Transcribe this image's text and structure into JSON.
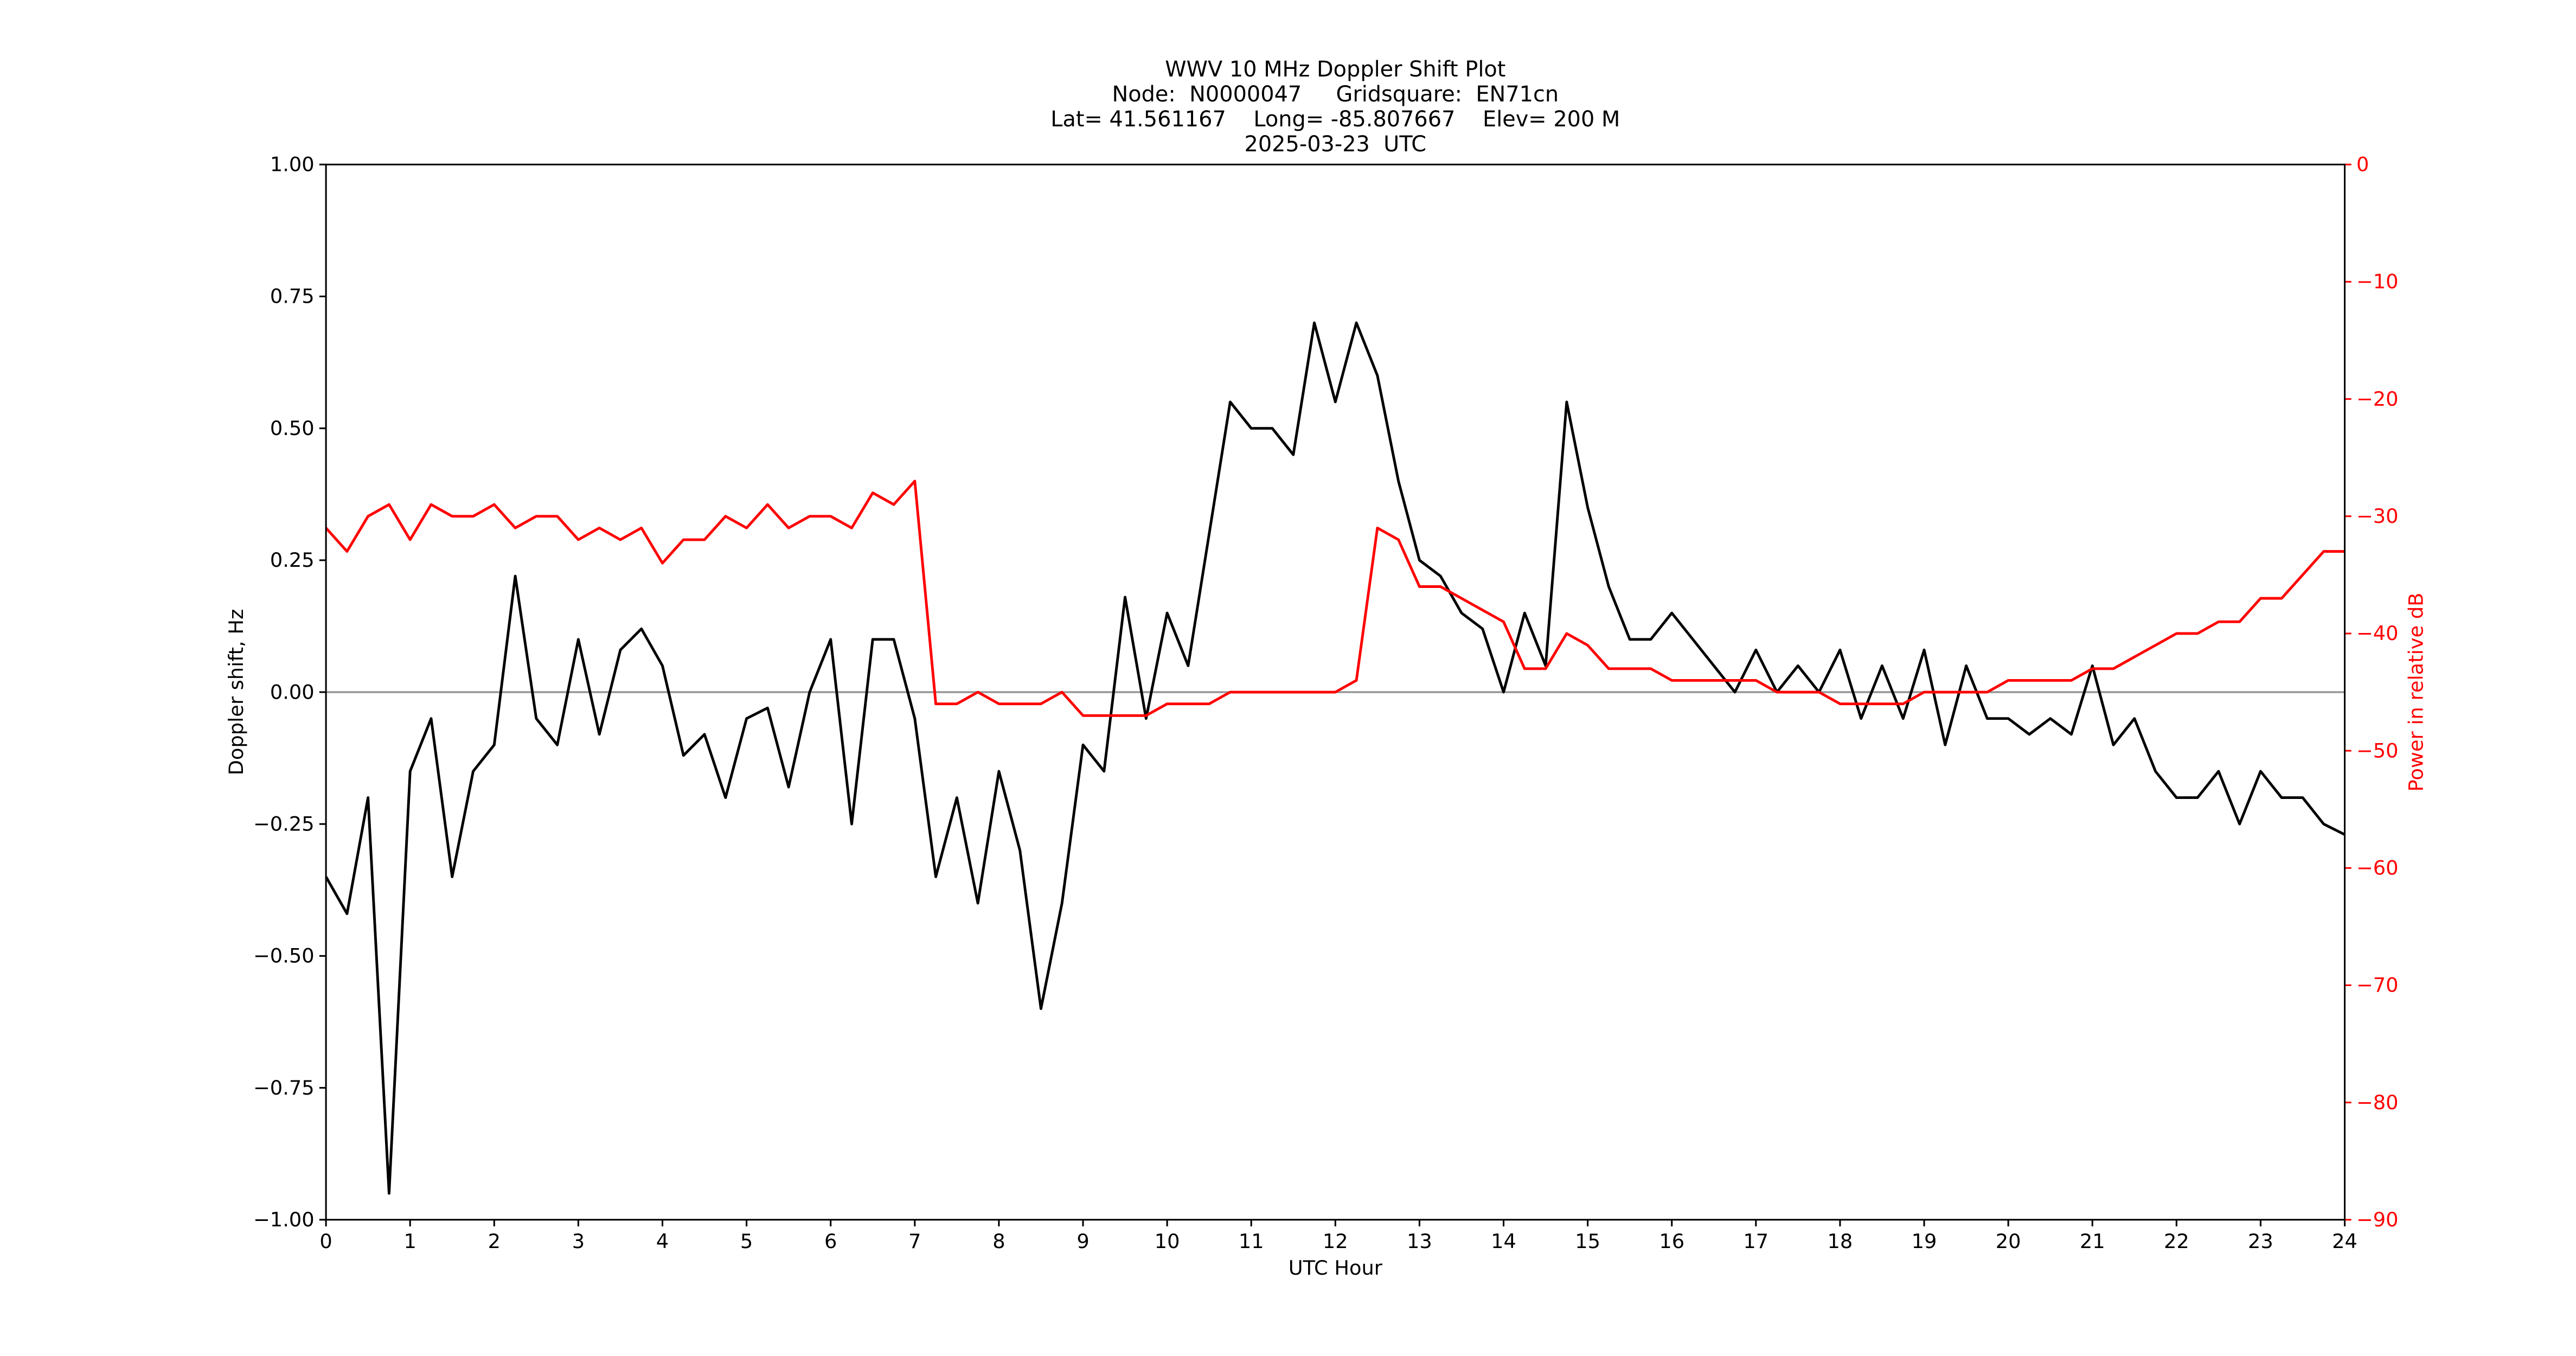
{
  "chart_data": {
    "type": "line",
    "title_lines": [
      "WWV 10 MHz Doppler Shift Plot",
      "Node:  N0000047     Gridsquare:  EN71cn",
      "Lat= 41.561167    Long= -85.807667    Elev= 200 M",
      "2025-03-23  UTC"
    ],
    "xlabel": "UTC Hour",
    "ylabel": "Doppler shift, Hz",
    "y2label": "Power in relative dB",
    "x": [
      0,
      0.25,
      0.5,
      0.75,
      1,
      1.25,
      1.5,
      1.75,
      2,
      2.25,
      2.5,
      2.75,
      3,
      3.25,
      3.5,
      3.75,
      4,
      4.25,
      4.5,
      4.75,
      5,
      5.25,
      5.5,
      5.75,
      6,
      6.25,
      6.5,
      6.75,
      7,
      7.25,
      7.5,
      7.75,
      8,
      8.25,
      8.5,
      8.75,
      9,
      9.25,
      9.5,
      9.75,
      10,
      10.25,
      10.5,
      10.75,
      11,
      11.25,
      11.5,
      11.75,
      12,
      12.25,
      12.5,
      12.75,
      13,
      13.25,
      13.5,
      13.75,
      14,
      14.25,
      14.5,
      14.75,
      15,
      15.25,
      15.5,
      15.75,
      16,
      16.25,
      16.5,
      16.75,
      17,
      17.25,
      17.5,
      17.75,
      18,
      18.25,
      18.5,
      18.75,
      19,
      19.25,
      19.5,
      19.75,
      20,
      20.25,
      20.5,
      20.75,
      21,
      21.25,
      21.5,
      21.75,
      22,
      22.25,
      22.5,
      22.75,
      23,
      23.25,
      23.5,
      23.75,
      24
    ],
    "series": [
      {
        "name": "Doppler shift",
        "color": "#000000",
        "axis": "y",
        "values": [
          -0.35,
          -0.42,
          -0.2,
          -0.95,
          -0.15,
          -0.05,
          -0.35,
          -0.15,
          -0.1,
          0.22,
          -0.05,
          -0.1,
          0.1,
          -0.08,
          0.08,
          0.12,
          0.05,
          -0.12,
          -0.08,
          -0.2,
          -0.05,
          -0.03,
          -0.18,
          0,
          0.1,
          -0.25,
          0.1,
          0.1,
          -0.05,
          -0.35,
          -0.2,
          -0.4,
          -0.15,
          -0.3,
          -0.6,
          -0.4,
          -0.1,
          -0.15,
          0.18,
          -0.05,
          0.15,
          0.05,
          0.3,
          0.55,
          0.5,
          0.5,
          0.45,
          0.7,
          0.55,
          0.7,
          0.6,
          0.4,
          0.25,
          0.22,
          0.15,
          0.12,
          0,
          0.15,
          0.05,
          0.55,
          0.35,
          0.2,
          0.1,
          0.1,
          0.15,
          0.1,
          0.05,
          0,
          0.08,
          0,
          0.05,
          0,
          0.08,
          -0.05,
          0.05,
          -0.05,
          0.08,
          -0.1,
          0.05,
          -0.05,
          -0.05,
          -0.08,
          -0.05,
          -0.08,
          0.05,
          -0.1,
          -0.05,
          -0.15,
          -0.2,
          -0.2,
          -0.15,
          -0.25,
          -0.15,
          -0.2,
          -0.2,
          -0.25,
          -0.27
        ]
      },
      {
        "name": "Power",
        "color": "#ff0000",
        "axis": "y2",
        "values": [
          -31,
          -33,
          -30,
          -29,
          -32,
          -29,
          -30,
          -30,
          -29,
          -31,
          -30,
          -30,
          -32,
          -31,
          -32,
          -31,
          -34,
          -32,
          -32,
          -30,
          -31,
          -29,
          -31,
          -30,
          -30,
          -31,
          -28,
          -29,
          -27,
          -46,
          -46,
          -45,
          -46,
          -46,
          -46,
          -45,
          -47,
          -47,
          -47,
          -47,
          -46,
          -46,
          -46,
          -45,
          -45,
          -45,
          -45,
          -45,
          -45,
          -44,
          -31,
          -32,
          -36,
          -36,
          -37,
          -38,
          -39,
          -43,
          -43,
          -40,
          -41,
          -43,
          -43,
          -43,
          -44,
          -44,
          -44,
          -44,
          -44,
          -45,
          -45,
          -45,
          -46,
          -46,
          -46,
          -46,
          -45,
          -45,
          -45,
          -45,
          -44,
          -44,
          -44,
          -44,
          -43,
          -43,
          -42,
          -41,
          -40,
          -40,
          -39,
          -39,
          -37,
          -37,
          -35,
          -33,
          -33
        ]
      }
    ],
    "reference_line": 0,
    "xlim": [
      0,
      24
    ],
    "xticks": [
      0,
      1,
      2,
      3,
      4,
      5,
      6,
      7,
      8,
      9,
      10,
      11,
      12,
      13,
      14,
      15,
      16,
      17,
      18,
      19,
      20,
      21,
      22,
      23,
      24
    ],
    "ylim": [
      -1,
      1
    ],
    "yticks": [
      {
        "value": -1,
        "label": "−1.00"
      },
      {
        "value": -0.75,
        "label": "−0.75"
      },
      {
        "value": -0.5,
        "label": "−0.50"
      },
      {
        "value": -0.25,
        "label": "−0.25"
      },
      {
        "value": 0,
        "label": "0.00"
      },
      {
        "value": 0.25,
        "label": "0.25"
      },
      {
        "value": 0.5,
        "label": "0.50"
      },
      {
        "value": 0.75,
        "label": "0.75"
      },
      {
        "value": 1,
        "label": "1.00"
      }
    ],
    "y2lim": [
      -90,
      0
    ],
    "y2ticks": [
      {
        "value": -90,
        "label": "−90"
      },
      {
        "value": -80,
        "label": "−80"
      },
      {
        "value": -70,
        "label": "−70"
      },
      {
        "value": -60,
        "label": "−60"
      },
      {
        "value": -50,
        "label": "−50"
      },
      {
        "value": -40,
        "label": "−40"
      },
      {
        "value": -30,
        "label": "−30"
      },
      {
        "value": -20,
        "label": "−20"
      },
      {
        "value": -10,
        "label": "−10"
      },
      0
    ],
    "y2color": "#ff0000",
    "reference_color": "#999999"
  }
}
